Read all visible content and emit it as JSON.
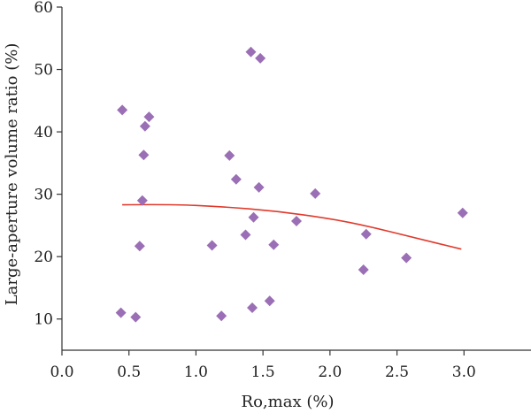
{
  "chart_data": {
    "type": "scatter",
    "xlabel": "Ro,max (%)",
    "ylabel": "Large-aperture volume ratio (%)",
    "xlim": [
      0,
      3.5
    ],
    "ylim": [
      5,
      60
    ],
    "x_ticks": [
      "0.0",
      "0.5",
      "1.0",
      "1.5",
      "2.0",
      "2.5",
      "3.0"
    ],
    "y_ticks": [
      "10",
      "20",
      "30",
      "40",
      "50",
      "60"
    ],
    "x_tick_values": [
      0,
      0.5,
      1.0,
      1.5,
      2.0,
      2.5,
      3.0
    ],
    "y_tick_values": [
      10,
      20,
      30,
      40,
      50,
      60
    ],
    "grid": false,
    "colors": {
      "points": "#9b6fb5",
      "fit_line": "#e03a2c",
      "axes": "#333333"
    },
    "points": [
      {
        "x": 0.44,
        "y": 11.0
      },
      {
        "x": 0.45,
        "y": 43.5
      },
      {
        "x": 0.55,
        "y": 10.3
      },
      {
        "x": 0.58,
        "y": 21.7
      },
      {
        "x": 0.6,
        "y": 29.0
      },
      {
        "x": 0.61,
        "y": 36.3
      },
      {
        "x": 0.62,
        "y": 40.9
      },
      {
        "x": 0.65,
        "y": 42.4
      },
      {
        "x": 1.12,
        "y": 21.8
      },
      {
        "x": 1.19,
        "y": 10.5
      },
      {
        "x": 1.25,
        "y": 36.2
      },
      {
        "x": 1.3,
        "y": 32.4
      },
      {
        "x": 1.37,
        "y": 23.5
      },
      {
        "x": 1.41,
        "y": 52.8
      },
      {
        "x": 1.42,
        "y": 11.8
      },
      {
        "x": 1.43,
        "y": 26.3
      },
      {
        "x": 1.47,
        "y": 31.1
      },
      {
        "x": 1.48,
        "y": 51.8
      },
      {
        "x": 1.55,
        "y": 12.9
      },
      {
        "x": 1.58,
        "y": 21.9
      },
      {
        "x": 1.75,
        "y": 25.7
      },
      {
        "x": 1.89,
        "y": 30.1
      },
      {
        "x": 2.25,
        "y": 17.9
      },
      {
        "x": 2.27,
        "y": 23.6
      },
      {
        "x": 2.57,
        "y": 19.8
      },
      {
        "x": 2.99,
        "y": 27.0
      }
    ],
    "fit_line": [
      {
        "x": 0.45,
        "y": 28.3
      },
      {
        "x": 0.8,
        "y": 28.4
      },
      {
        "x": 1.2,
        "y": 28.0
      },
      {
        "x": 1.6,
        "y": 27.3
      },
      {
        "x": 2.0,
        "y": 26.1
      },
      {
        "x": 2.3,
        "y": 24.8
      },
      {
        "x": 2.6,
        "y": 23.2
      },
      {
        "x": 2.98,
        "y": 21.2
      }
    ]
  }
}
